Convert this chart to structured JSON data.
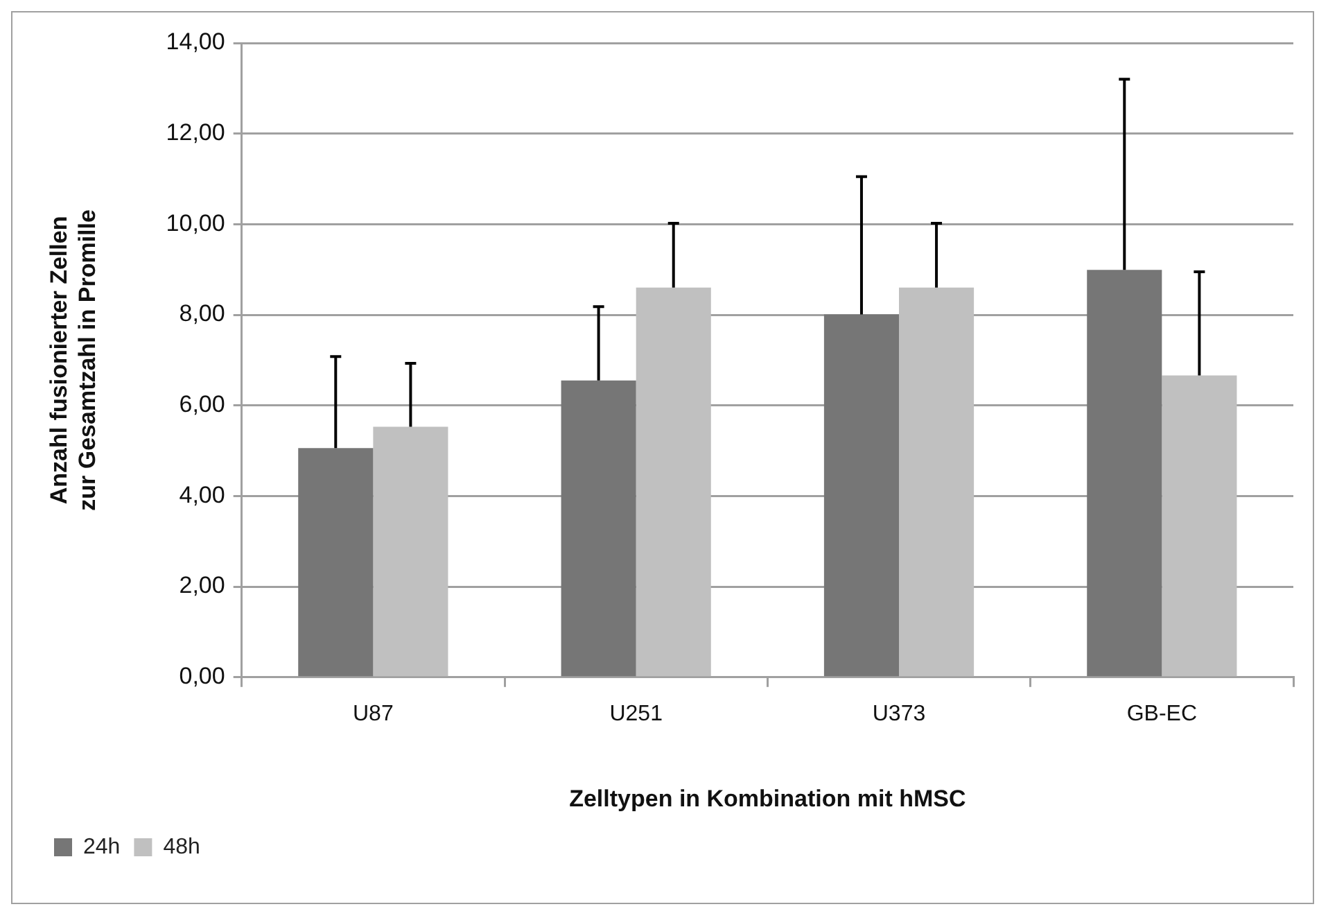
{
  "chart_data": {
    "type": "bar",
    "xlabel": "Zelltypen in Kombination mit hMSC",
    "ylabel": "Anzahl fusionierter Zellen zur Gesamtzahl in Promille",
    "categories": [
      "U87",
      "U251",
      "U373",
      "GB-EC"
    ],
    "series": [
      {
        "name": "24h",
        "color": "#767676",
        "values": [
          5.06,
          6.55,
          8.01,
          8.99
        ],
        "errors": [
          [
            5.06,
            7.08
          ],
          [
            6.55,
            8.18
          ],
          [
            8.01,
            11.05
          ],
          [
            8.99,
            13.2
          ]
        ]
      },
      {
        "name": "48h",
        "color": "#c0c0c0",
        "values": [
          5.53,
          8.6,
          8.6,
          6.66
        ],
        "errors": [
          [
            5.53,
            6.93
          ],
          [
            8.6,
            10.02
          ],
          [
            8.6,
            10.02
          ],
          [
            6.66,
            8.95
          ]
        ]
      }
    ],
    "ylim": [
      0,
      14
    ],
    "yticks": [
      {
        "value": 0,
        "label": "0,00"
      },
      {
        "value": 2,
        "label": "2,00"
      },
      {
        "value": 4,
        "label": "4,00"
      },
      {
        "value": 6,
        "label": "6,00"
      },
      {
        "value": 8,
        "label": "8,00"
      },
      {
        "value": 10,
        "label": "10,00"
      },
      {
        "value": 12,
        "label": "12,00"
      },
      {
        "value": 14,
        "label": "14,00"
      }
    ],
    "grid": "y",
    "legend": "bottom left"
  }
}
